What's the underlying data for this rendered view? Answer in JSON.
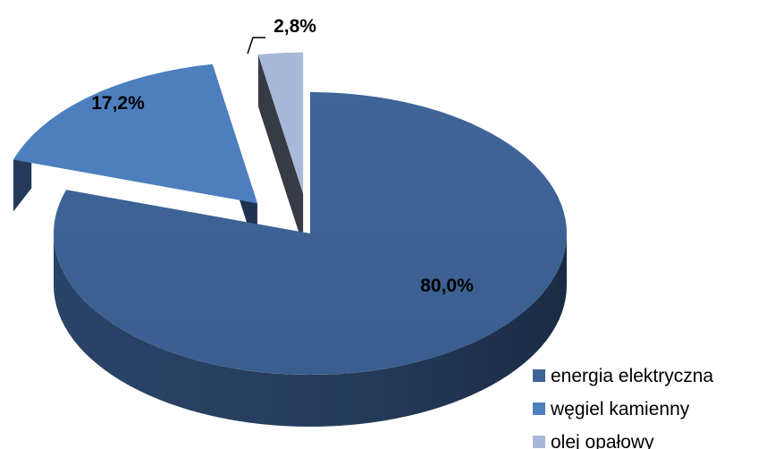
{
  "chart_data": {
    "type": "pie",
    "variant": "3d-exploded",
    "title": "",
    "categories": [
      "energia elektryczna",
      "węgiel kamienny",
      "olej opałowy"
    ],
    "values": [
      80.0,
      17.2,
      2.8
    ],
    "data_labels": [
      "80,0%",
      "17,2%",
      "2,8%"
    ],
    "colors": [
      "#3e6396",
      "#4d7fbe",
      "#a8b8d9"
    ],
    "legend": {
      "position": "bottom-right"
    }
  }
}
